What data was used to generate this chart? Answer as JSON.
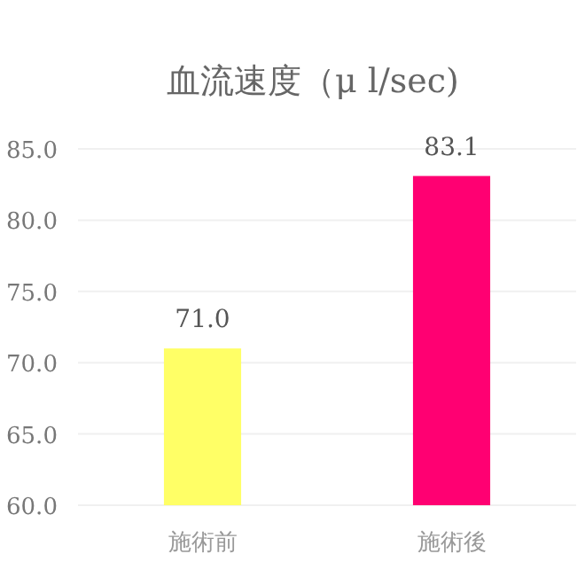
{
  "chart_data": {
    "type": "bar",
    "title": "血流速度（μ l/sec)",
    "categories": [
      "施術前",
      "施術後"
    ],
    "values": [
      71.0,
      83.1
    ],
    "colors": [
      "#ffff66",
      "#ff0072"
    ],
    "ylim": [
      60,
      85
    ],
    "yticks": [
      {
        "value": 60,
        "label": "60.0"
      },
      {
        "value": 65,
        "label": "65.0"
      },
      {
        "value": 70,
        "label": "70.0"
      },
      {
        "value": 75,
        "label": "75.0"
      },
      {
        "value": 80,
        "label": "80.0"
      },
      {
        "value": 85,
        "label": "85.0"
      }
    ],
    "grid": "y",
    "value_labels": [
      "71.0",
      "83.1"
    ]
  }
}
